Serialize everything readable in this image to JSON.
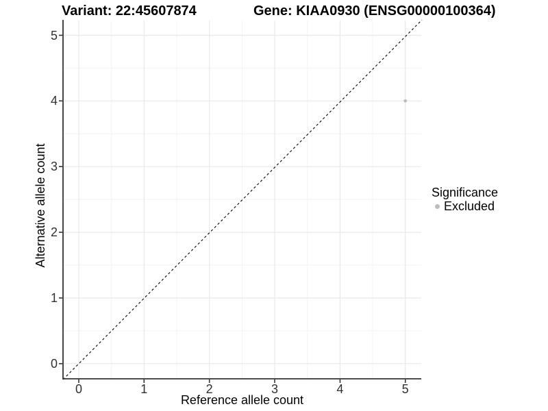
{
  "chart_data": {
    "type": "scatter",
    "titles": {
      "left": "Variant: 22:45607874",
      "right": "Gene: KIAA0930 (ENSG00000100364)"
    },
    "xlabel": "Reference allele count",
    "ylabel": "Alternative allele count",
    "x_tick_labels": [
      "0",
      "1",
      "2",
      "3",
      "4",
      "5"
    ],
    "y_tick_labels": [
      "0",
      "1",
      "2",
      "3",
      "4",
      "5"
    ],
    "xlim": [
      -0.24,
      5.24
    ],
    "ylim": [
      -0.23,
      5.22
    ],
    "grid": "major and minor gridlines, light gray on white",
    "reference_line": {
      "kind": "identity y=x",
      "style": "dashed",
      "color": "#000000"
    },
    "points": [
      {
        "x": 5,
        "y": 4,
        "significance": "Excluded",
        "color": "#BDBDBD",
        "radius": 2.4
      }
    ],
    "legend": {
      "position": "right",
      "title": "Significance",
      "entries": [
        {
          "label": "Excluded",
          "color": "#BDBDBD"
        }
      ]
    },
    "colors": {
      "grid_major": "#E8E8E8",
      "grid_minor": "#F3F3F3",
      "axis": "#333333",
      "point": "#BDBDBD"
    }
  }
}
